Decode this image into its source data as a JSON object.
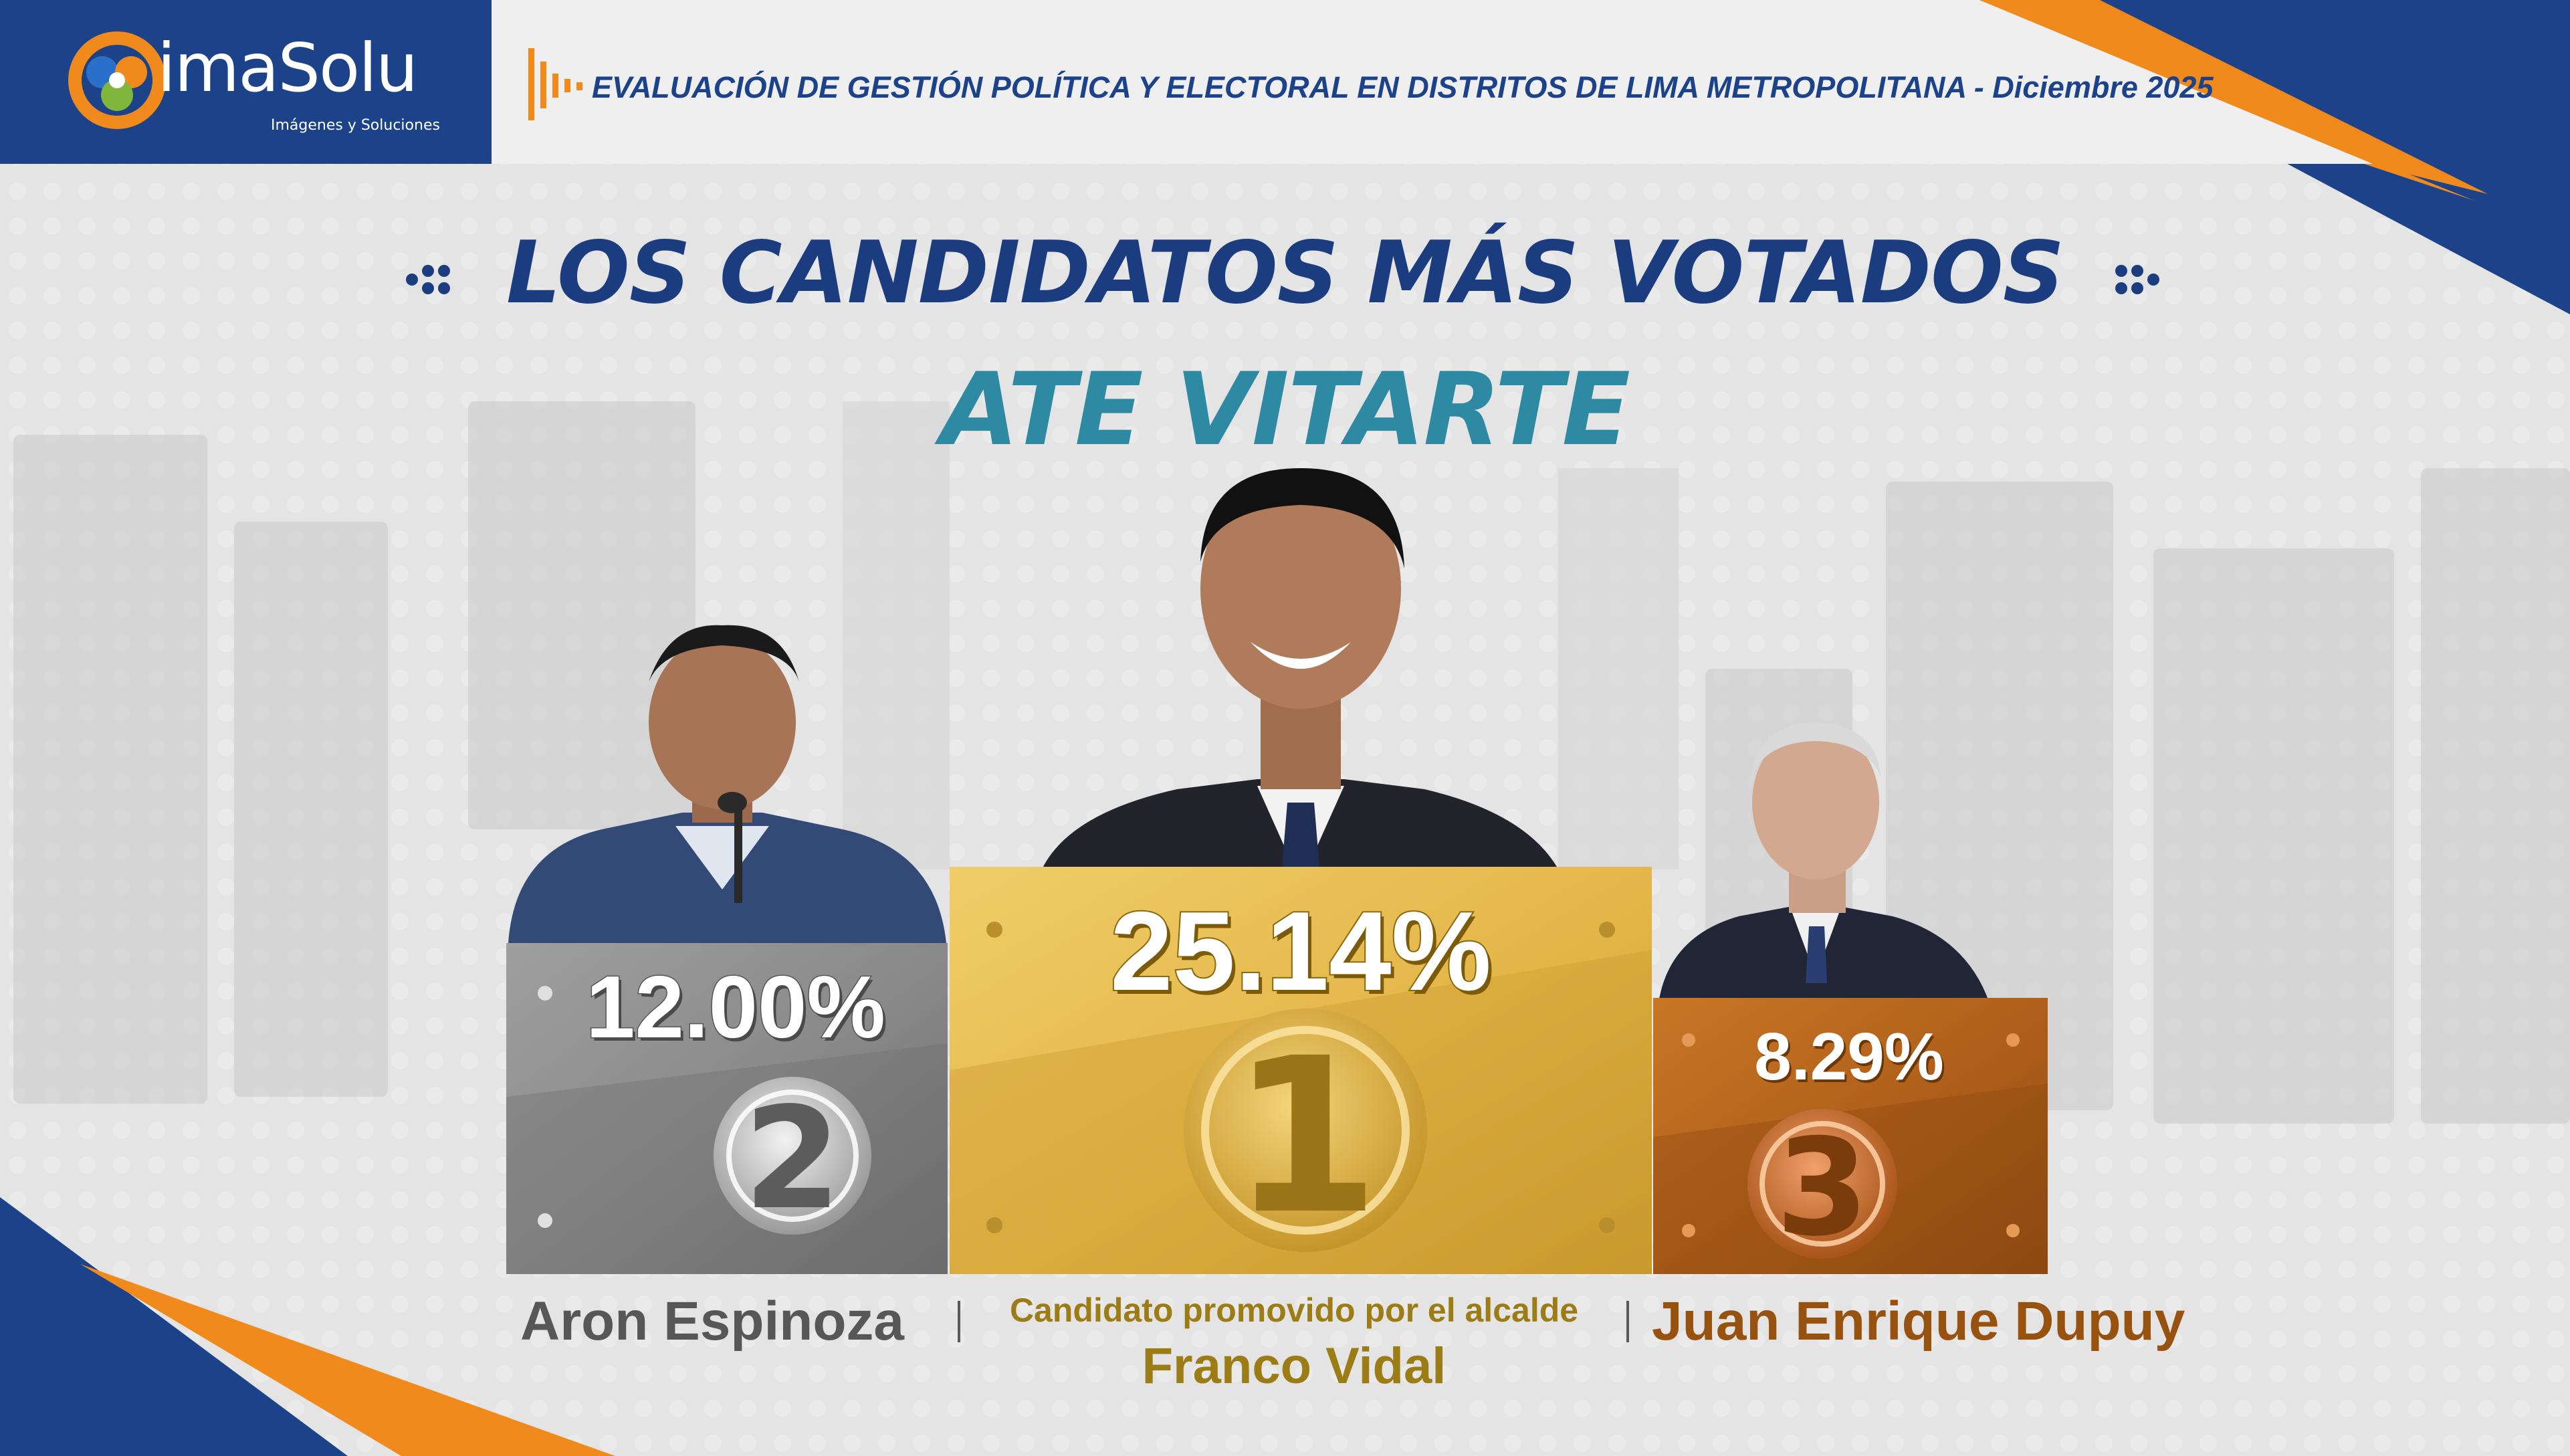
{
  "brand": {
    "name": "imaSolu",
    "tagline": "Imágenes y Soluciones",
    "colors": {
      "navy": "#1c4289",
      "orange": "#f08a1c",
      "blue": "#2a6fc9",
      "teal": "#2e8aa3"
    }
  },
  "header": {
    "title": "EVALUACIÓN DE GESTIÓN POLÍTICA Y ELECTORAL EN DISTRITOS DE LIMA METROPOLITANA - Diciembre 2025",
    "icon": "sound-wave-icon"
  },
  "headline": {
    "title": "LOS CANDIDATOS MÁS VOTADOS",
    "district": "ATE VITARTE",
    "decoration": "dot-cluster-icon"
  },
  "chart_data": {
    "type": "bar",
    "title": "LOS CANDIDATOS MÁS VOTADOS",
    "subtitle": "ATE VITARTE",
    "categories": [
      "Aron Espinoza",
      "Franco Vidal",
      "Juan Enrique Dupuy"
    ],
    "values": [
      12.0,
      25.14,
      8.29
    ],
    "value_labels": [
      "12.00%",
      "25.14%",
      "8.29%"
    ],
    "ranks": [
      "2",
      "1",
      "3"
    ],
    "rank_colors": [
      "#8c8c8c",
      "#e2b74d",
      "#b8661e"
    ],
    "layout": "podium"
  },
  "candidates": [
    {
      "name": "Aron Espinoza",
      "note": "",
      "percent": "12.00%",
      "rank": "2"
    },
    {
      "name": "Franco Vidal",
      "note": "Candidato promovido por el alcalde",
      "percent": "25.14%",
      "rank": "1"
    },
    {
      "name": "Juan Enrique Dupuy",
      "note": "",
      "percent": "8.29%",
      "rank": "3"
    }
  ]
}
